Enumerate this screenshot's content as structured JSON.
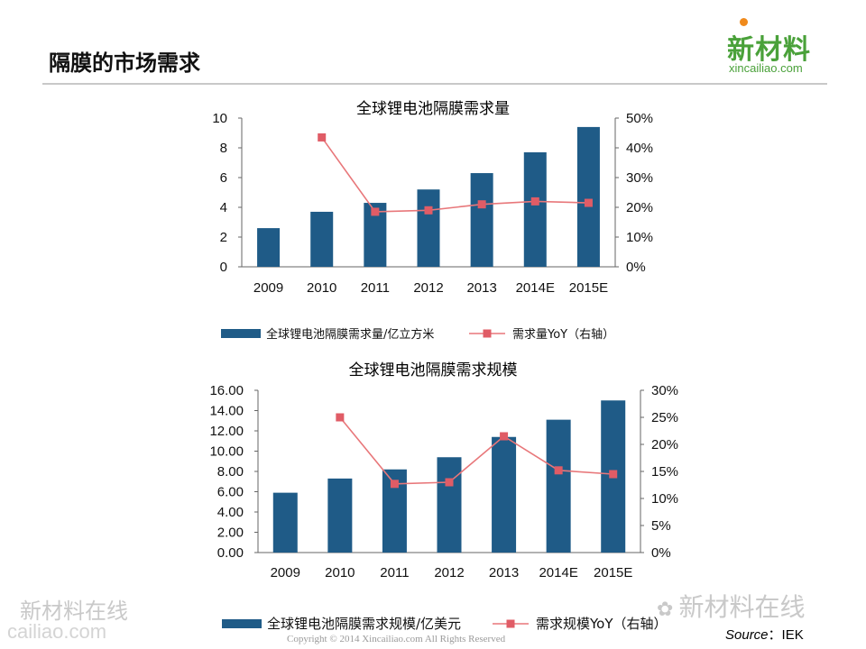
{
  "page": {
    "title": "隔膜的市场需求",
    "logo_main": "新材料",
    "logo_sub": "xincailiao.com",
    "watermark_left": "新材料在线",
    "watermark_left2": "cailiao.com",
    "watermark_right": "新材料在线",
    "copyright": "Copyright © 2014   Xincailiao.com   All Rights Reserved",
    "source_label": "Source",
    "source_value": "：IEK"
  },
  "colors": {
    "bar": "#1f5b87",
    "line": "#e8777a",
    "marker": "#e05c66",
    "title_rule": "#c8c8c8",
    "logo": "#4aa13a"
  },
  "chart_data": [
    {
      "type": "bar",
      "title": "全球锂电池隔膜需求量",
      "categories": [
        "2009",
        "2010",
        "2011",
        "2012",
        "2013",
        "2014E",
        "2015E"
      ],
      "series": [
        {
          "name": "全球锂电池隔膜需求量/亿立方米",
          "type": "bar",
          "axis": "left",
          "values": [
            2.6,
            3.7,
            4.3,
            5.2,
            6.3,
            7.7,
            9.4
          ]
        },
        {
          "name": "需求量YoY（右轴）",
          "type": "line",
          "axis": "right",
          "values": [
            null,
            43.5,
            18.5,
            19,
            21,
            22,
            21.5
          ]
        }
      ],
      "y_left": {
        "range": [
          0,
          10
        ],
        "ticks": [
          "0",
          "2",
          "4",
          "6",
          "8",
          "10"
        ]
      },
      "y_right": {
        "range": [
          0,
          50
        ],
        "ticks": [
          "0%",
          "10%",
          "20%",
          "30%",
          "40%",
          "50%"
        ]
      },
      "legend_position": "bottom"
    },
    {
      "type": "bar",
      "title": "全球锂电池隔膜需求规模",
      "categories": [
        "2009",
        "2010",
        "2011",
        "2012",
        "2013",
        "2014E",
        "2015E"
      ],
      "series": [
        {
          "name": "全球锂电池隔膜需求规模/亿美元",
          "type": "bar",
          "axis": "left",
          "values": [
            5.9,
            7.3,
            8.2,
            9.4,
            11.4,
            13.1,
            15.0
          ]
        },
        {
          "name": "需求规模YoY（右轴）",
          "type": "line",
          "axis": "right",
          "values": [
            null,
            25,
            12.7,
            13,
            21.5,
            15.2,
            14.5
          ]
        }
      ],
      "y_left": {
        "range": [
          0,
          16
        ],
        "ticks": [
          "0.00",
          "2.00",
          "4.00",
          "6.00",
          "8.00",
          "10.00",
          "12.00",
          "14.00",
          "16.00"
        ]
      },
      "y_right": {
        "range": [
          0,
          30
        ],
        "ticks": [
          "0%",
          "5%",
          "10%",
          "15%",
          "20%",
          "25%",
          "30%"
        ]
      },
      "legend_position": "bottom"
    }
  ]
}
